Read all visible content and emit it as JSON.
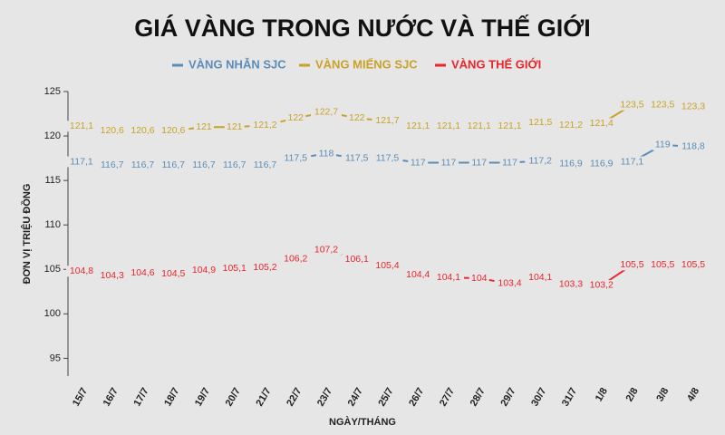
{
  "chart_data": {
    "type": "line",
    "title": "GIÁ VÀNG TRONG NƯỚC VÀ THẾ GIỚI",
    "x_label": "NGÀY/THÁNG",
    "y_label": "ĐƠN VỊ TRIỆU ĐỒNG",
    "categories": [
      "15/7",
      "16/7",
      "17/7",
      "18/7",
      "19/7",
      "20/7",
      "21/7",
      "22/7",
      "23/7",
      "24/7",
      "25/7",
      "26/7",
      "27/7",
      "28/7",
      "29/7",
      "30/7",
      "31/7",
      "1/8",
      "2/8",
      "3/8",
      "4/8"
    ],
    "series": [
      {
        "name": "VÀNG NHẪN SJC",
        "color": "#5b8db8",
        "values": [
          117.1,
          116.7,
          116.7,
          116.7,
          116.7,
          116.7,
          116.7,
          117.5,
          118,
          117.5,
          117.5,
          117,
          117,
          117,
          117,
          117.2,
          116.9,
          116.9,
          117.1,
          119,
          118.8
        ],
        "value_labels": [
          "117,1",
          "116,7",
          "116,7",
          "116,7",
          "116,7",
          "116,7",
          "116,7",
          "117,5",
          "118",
          "117,5",
          "117,5",
          "117",
          "117",
          "117",
          "117",
          "117,2",
          "116,9",
          "116,9",
          "117,1",
          "119",
          "118,8"
        ]
      },
      {
        "name": "VÀNG MIẾNG SJC",
        "color": "#c9a227",
        "values": [
          121.1,
          120.6,
          120.6,
          120.6,
          121,
          121,
          121.2,
          122,
          122.7,
          122,
          121.7,
          121.1,
          121.1,
          121.1,
          121.1,
          121.5,
          121.2,
          121.4,
          123.5,
          123.5,
          123.3
        ],
        "value_labels": [
          "121,1",
          "120,6",
          "120,6",
          "120,6",
          "121",
          "121",
          "121,2",
          "122",
          "122,7",
          "122",
          "121,7",
          "121,1",
          "121,1",
          "121,1",
          "121,1",
          "121,5",
          "121,2",
          "121,4",
          "123,5",
          "123,5",
          "123,3"
        ]
      },
      {
        "name": "VÀNG THẾ GIỚI",
        "color": "#e8262c",
        "values": [
          104.8,
          104.3,
          104.6,
          104.5,
          104.9,
          105.1,
          105.2,
          106.2,
          107.2,
          106.1,
          105.4,
          104.4,
          104.1,
          104,
          103.4,
          104.1,
          103.3,
          103.2,
          105.5,
          105.5,
          105.5
        ],
        "value_labels": [
          "104,8",
          "104,3",
          "104,6",
          "104,5",
          "104,9",
          "105,1",
          "105,2",
          "106,2",
          "107,2",
          "106,1",
          "105,4",
          "104,4",
          "104,1",
          "104",
          "103,4",
          "104,1",
          "103,3",
          "103,2",
          "105,5",
          "105,5",
          "105,5"
        ]
      }
    ],
    "ylim": [
      93,
      125
    ],
    "yticks": [
      95,
      100,
      105,
      110,
      115,
      120,
      125
    ],
    "grid": false
  }
}
